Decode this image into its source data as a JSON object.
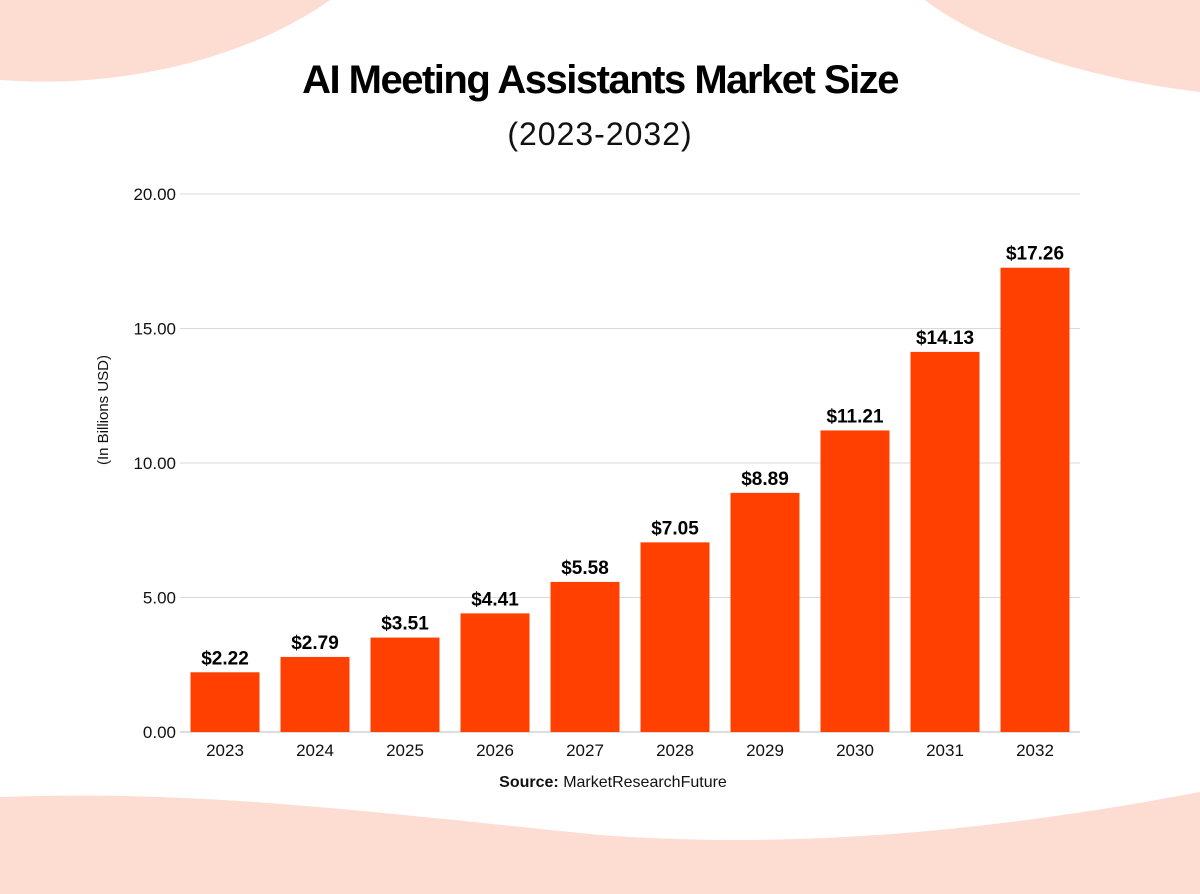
{
  "colors": {
    "bar": "#ff4000",
    "background_blob": "#fddcd2",
    "grid": "#d9d9d9"
  },
  "chart_data": {
    "type": "bar",
    "title": "AI Meeting Assistants Market Size",
    "subtitle": "(2023-2032)",
    "ylabel": "(In Billions USD)",
    "xlabel": "",
    "categories": [
      "2023",
      "2024",
      "2025",
      "2026",
      "2027",
      "2028",
      "2029",
      "2030",
      "2031",
      "2032"
    ],
    "values": [
      2.22,
      2.79,
      3.51,
      4.41,
      5.58,
      7.05,
      8.89,
      11.21,
      14.13,
      17.26
    ],
    "data_labels": [
      "$2.22",
      "$2.79",
      "$3.51",
      "$4.41",
      "$5.58",
      "$7.05",
      "$8.89",
      "$11.21",
      "$14.13",
      "$17.26"
    ],
    "ylim": [
      0,
      20
    ],
    "yticks": [
      "0.00",
      "5.00",
      "10.00",
      "15.00",
      "20.00"
    ],
    "grid": true,
    "legend": "none"
  },
  "source": {
    "label": "Source:",
    "value": "MarketResearchFuture"
  }
}
